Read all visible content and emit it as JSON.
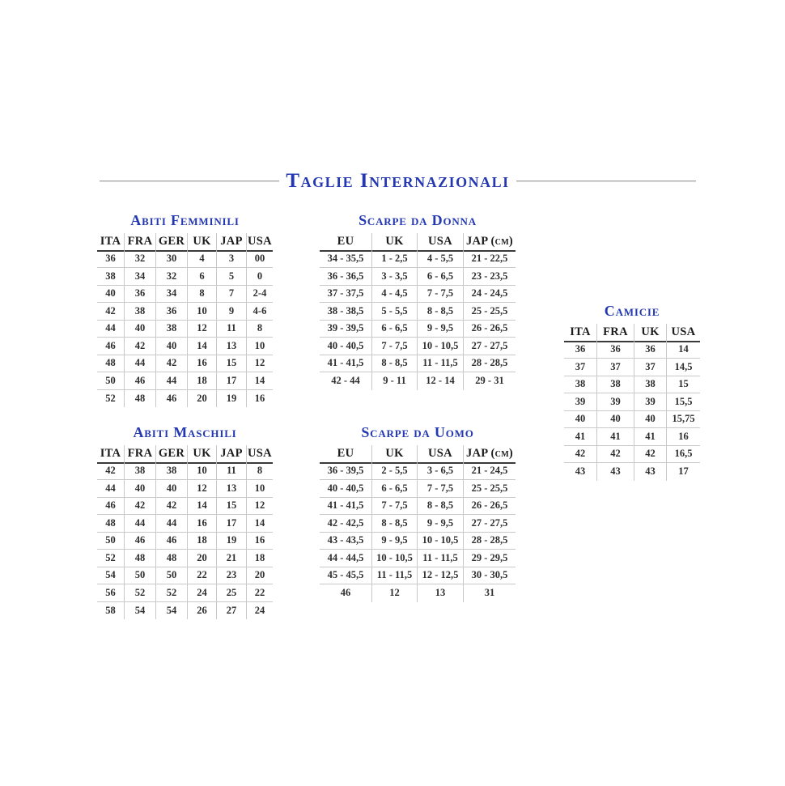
{
  "page_title": {
    "text": "Taglie Internazionali"
  },
  "colors": {
    "accent_blue": "#2438b2",
    "text_dark": "#2e2e2e",
    "grid_light": "#c9c9c9",
    "header_rule": "#3a3a3a",
    "title_rule": "#a3a3a3"
  },
  "tables": {
    "abiti_femminili": {
      "title": "Abiti Femminili",
      "columns": [
        "ITA",
        "FRA",
        "GER",
        "UK",
        "JAP",
        "USA"
      ],
      "rows": [
        [
          "36",
          "32",
          "30",
          "4",
          "3",
          "00"
        ],
        [
          "38",
          "34",
          "32",
          "6",
          "5",
          "0"
        ],
        [
          "40",
          "36",
          "34",
          "8",
          "7",
          "2-4"
        ],
        [
          "42",
          "38",
          "36",
          "10",
          "9",
          "4-6"
        ],
        [
          "44",
          "40",
          "38",
          "12",
          "11",
          "8"
        ],
        [
          "46",
          "42",
          "40",
          "14",
          "13",
          "10"
        ],
        [
          "48",
          "44",
          "42",
          "16",
          "15",
          "12"
        ],
        [
          "50",
          "46",
          "44",
          "18",
          "17",
          "14"
        ],
        [
          "52",
          "48",
          "46",
          "20",
          "19",
          "16"
        ]
      ]
    },
    "scarpe_da_donna": {
      "title": "Scarpe da Donna",
      "columns": [
        "EU",
        "UK",
        "USA",
        "JAP (cm)"
      ],
      "rows": [
        [
          "34 - 35,5",
          "1 - 2,5",
          "4 - 5,5",
          "21 - 22,5"
        ],
        [
          "36 - 36,5",
          "3 - 3,5",
          "6 - 6,5",
          "23 - 23,5"
        ],
        [
          "37 - 37,5",
          "4 - 4,5",
          "7 - 7,5",
          "24 - 24,5"
        ],
        [
          "38 - 38,5",
          "5 - 5,5",
          "8 - 8,5",
          "25 - 25,5"
        ],
        [
          "39 - 39,5",
          "6 - 6,5",
          "9 - 9,5",
          "26 - 26,5"
        ],
        [
          "40 - 40,5",
          "7 - 7,5",
          "10 - 10,5",
          "27 - 27,5"
        ],
        [
          "41 - 41,5",
          "8 - 8,5",
          "11 - 11,5",
          "28 - 28,5"
        ],
        [
          "42 - 44",
          "9 - 11",
          "12 - 14",
          "29 - 31"
        ]
      ]
    },
    "camicie": {
      "title": "Camicie",
      "columns": [
        "ITA",
        "FRA",
        "UK",
        "USA"
      ],
      "rows": [
        [
          "36",
          "36",
          "36",
          "14"
        ],
        [
          "37",
          "37",
          "37",
          "14,5"
        ],
        [
          "38",
          "38",
          "38",
          "15"
        ],
        [
          "39",
          "39",
          "39",
          "15,5"
        ],
        [
          "40",
          "40",
          "40",
          "15,75"
        ],
        [
          "41",
          "41",
          "41",
          "16"
        ],
        [
          "42",
          "42",
          "42",
          "16,5"
        ],
        [
          "43",
          "43",
          "43",
          "17"
        ]
      ]
    },
    "abiti_maschili": {
      "title": "Abiti Maschili",
      "columns": [
        "ITA",
        "FRA",
        "GER",
        "UK",
        "JAP",
        "USA"
      ],
      "rows": [
        [
          "42",
          "38",
          "38",
          "10",
          "11",
          "8"
        ],
        [
          "44",
          "40",
          "40",
          "12",
          "13",
          "10"
        ],
        [
          "46",
          "42",
          "42",
          "14",
          "15",
          "12"
        ],
        [
          "48",
          "44",
          "44",
          "16",
          "17",
          "14"
        ],
        [
          "50",
          "46",
          "46",
          "18",
          "19",
          "16"
        ],
        [
          "52",
          "48",
          "48",
          "20",
          "21",
          "18"
        ],
        [
          "54",
          "50",
          "50",
          "22",
          "23",
          "20"
        ],
        [
          "56",
          "52",
          "52",
          "24",
          "25",
          "22"
        ],
        [
          "58",
          "54",
          "54",
          "26",
          "27",
          "24"
        ]
      ]
    },
    "scarpe_da_uomo": {
      "title": "Scarpe da Uomo",
      "columns": [
        "EU",
        "UK",
        "USA",
        "JAP (cm)"
      ],
      "rows": [
        [
          "36 - 39,5",
          "2 - 5,5",
          "3 - 6,5",
          "21 - 24,5"
        ],
        [
          "40 - 40,5",
          "6 - 6,5",
          "7 - 7,5",
          "25 - 25,5"
        ],
        [
          "41 - 41,5",
          "7 - 7,5",
          "8 - 8,5",
          "26 - 26,5"
        ],
        [
          "42 - 42,5",
          "8 - 8,5",
          "9 - 9,5",
          "27 - 27,5"
        ],
        [
          "43 - 43,5",
          "9 - 9,5",
          "10 - 10,5",
          "28 - 28,5"
        ],
        [
          "44 - 44,5",
          "10 - 10,5",
          "11 - 11,5",
          "29 - 29,5"
        ],
        [
          "45 - 45,5",
          "11 - 11,5",
          "12 - 12,5",
          "30 - 30,5"
        ],
        [
          "46",
          "12",
          "13",
          "31"
        ]
      ]
    }
  }
}
